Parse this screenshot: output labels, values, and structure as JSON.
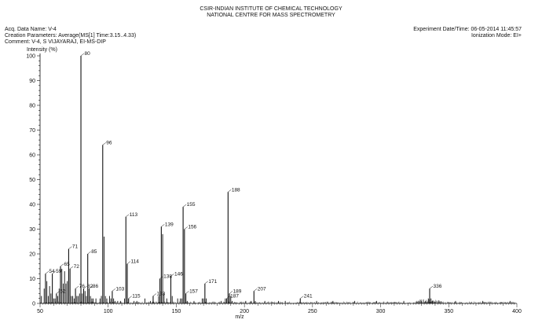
{
  "header": {
    "institute": "CSIR-INDIAN INSTITUTE OF CHEMICAL TECHNOLOGY",
    "centre": "NATIONAL CENTRE FOR MASS SPECTROMETRY",
    "acq_data_name": "Acq. Data Name: V-4",
    "creation_parameters": "Creation Parameters: Average(MS[1] Time:3.15..4.33)",
    "comment": "Comment: V-4,   S VIJAYARAJ,  EI-MS-DIP",
    "experiment_datetime": "Experiment Date/Time: 06-05-2014 11:45:57",
    "ionization_mode": "Ionization Mode: EI+"
  },
  "chart_data": {
    "type": "bar",
    "ylabel": "Intensity (%)",
    "xlabel": "m/z",
    "xlim": [
      50,
      400
    ],
    "ylim": [
      0,
      100
    ],
    "x_ticks": [
      50,
      100,
      150,
      200,
      250,
      300,
      350,
      400
    ],
    "y_ticks": [
      0,
      10,
      20,
      30,
      40,
      50,
      60,
      70,
      80,
      90,
      100
    ],
    "labeled_peaks": [
      {
        "mz": 54,
        "intensity": 12
      },
      {
        "mz": 59,
        "intensity": 12
      },
      {
        "mz": 62,
        "intensity": 4
      },
      {
        "mz": 65,
        "intensity": 15
      },
      {
        "mz": 71,
        "intensity": 22
      },
      {
        "mz": 72,
        "intensity": 14
      },
      {
        "mz": 76,
        "intensity": 6
      },
      {
        "mz": 80,
        "intensity": 100
      },
      {
        "mz": 82,
        "intensity": 6
      },
      {
        "mz": 85,
        "intensity": 20
      },
      {
        "mz": 86,
        "intensity": 6
      },
      {
        "mz": 96,
        "intensity": 64
      },
      {
        "mz": 103,
        "intensity": 5
      },
      {
        "mz": 113,
        "intensity": 35
      },
      {
        "mz": 114,
        "intensity": 16
      },
      {
        "mz": 115,
        "intensity": 2
      },
      {
        "mz": 133,
        "intensity": 3
      },
      {
        "mz": 138,
        "intensity": 10
      },
      {
        "mz": 139,
        "intensity": 31
      },
      {
        "mz": 146,
        "intensity": 11
      },
      {
        "mz": 155,
        "intensity": 39
      },
      {
        "mz": 156,
        "intensity": 30
      },
      {
        "mz": 157,
        "intensity": 4
      },
      {
        "mz": 171,
        "intensity": 8
      },
      {
        "mz": 187,
        "intensity": 2
      },
      {
        "mz": 188,
        "intensity": 45
      },
      {
        "mz": 189,
        "intensity": 4
      },
      {
        "mz": 207,
        "intensity": 5
      },
      {
        "mz": 241,
        "intensity": 2
      },
      {
        "mz": 336,
        "intensity": 6
      }
    ],
    "minor_peaks": [
      {
        "mz": 51,
        "intensity": 3
      },
      {
        "mz": 53,
        "intensity": 6
      },
      {
        "mz": 55,
        "intensity": 9
      },
      {
        "mz": 56,
        "intensity": 3
      },
      {
        "mz": 57,
        "intensity": 7
      },
      {
        "mz": 58,
        "intensity": 4
      },
      {
        "mz": 60,
        "intensity": 2
      },
      {
        "mz": 61,
        "intensity": 2
      },
      {
        "mz": 63,
        "intensity": 3
      },
      {
        "mz": 64,
        "intensity": 6
      },
      {
        "mz": 66,
        "intensity": 14
      },
      {
        "mz": 67,
        "intensity": 8
      },
      {
        "mz": 68,
        "intensity": 13
      },
      {
        "mz": 69,
        "intensity": 8
      },
      {
        "mz": 70,
        "intensity": 9
      },
      {
        "mz": 73,
        "intensity": 3
      },
      {
        "mz": 74,
        "intensity": 3
      },
      {
        "mz": 75,
        "intensity": 2
      },
      {
        "mz": 77,
        "intensity": 3
      },
      {
        "mz": 78,
        "intensity": 3
      },
      {
        "mz": 79,
        "intensity": 4
      },
      {
        "mz": 81,
        "intensity": 4
      },
      {
        "mz": 83,
        "intensity": 5
      },
      {
        "mz": 84,
        "intensity": 3
      },
      {
        "mz": 87,
        "intensity": 3
      },
      {
        "mz": 88,
        "intensity": 2
      },
      {
        "mz": 89,
        "intensity": 2
      },
      {
        "mz": 91,
        "intensity": 2
      },
      {
        "mz": 94,
        "intensity": 2
      },
      {
        "mz": 95,
        "intensity": 3
      },
      {
        "mz": 97,
        "intensity": 27
      },
      {
        "mz": 98,
        "intensity": 3
      },
      {
        "mz": 99,
        "intensity": 2
      },
      {
        "mz": 101,
        "intensity": 3
      },
      {
        "mz": 102,
        "intensity": 2
      },
      {
        "mz": 104,
        "intensity": 2
      },
      {
        "mz": 105,
        "intensity": 1
      },
      {
        "mz": 107,
        "intensity": 1
      },
      {
        "mz": 109,
        "intensity": 1
      },
      {
        "mz": 112,
        "intensity": 2
      },
      {
        "mz": 119,
        "intensity": 1
      },
      {
        "mz": 121,
        "intensity": 1
      },
      {
        "mz": 127,
        "intensity": 2
      },
      {
        "mz": 131,
        "intensity": 1
      },
      {
        "mz": 137,
        "intensity": 3
      },
      {
        "mz": 140,
        "intensity": 28
      },
      {
        "mz": 141,
        "intensity": 4
      },
      {
        "mz": 143,
        "intensity": 2
      },
      {
        "mz": 147,
        "intensity": 3
      },
      {
        "mz": 151,
        "intensity": 2
      },
      {
        "mz": 153,
        "intensity": 2
      },
      {
        "mz": 154,
        "intensity": 2
      },
      {
        "mz": 158,
        "intensity": 1
      },
      {
        "mz": 163,
        "intensity": 1
      },
      {
        "mz": 169,
        "intensity": 2
      },
      {
        "mz": 170,
        "intensity": 2
      },
      {
        "mz": 172,
        "intensity": 2
      },
      {
        "mz": 183,
        "intensity": 1
      },
      {
        "mz": 186,
        "intensity": 2
      },
      {
        "mz": 190,
        "intensity": 3
      },
      {
        "mz": 191,
        "intensity": 1
      },
      {
        "mz": 201,
        "intensity": 1
      },
      {
        "mz": 205,
        "intensity": 1
      },
      {
        "mz": 208,
        "intensity": 1
      },
      {
        "mz": 215,
        "intensity": 1
      },
      {
        "mz": 225,
        "intensity": 1
      },
      {
        "mz": 230,
        "intensity": 1
      },
      {
        "mz": 253,
        "intensity": 1
      },
      {
        "mz": 265,
        "intensity": 1
      },
      {
        "mz": 281,
        "intensity": 1
      },
      {
        "mz": 297,
        "intensity": 1
      },
      {
        "mz": 317,
        "intensity": 1
      },
      {
        "mz": 330,
        "intensity": 1
      },
      {
        "mz": 333,
        "intensity": 1
      },
      {
        "mz": 335,
        "intensity": 2
      },
      {
        "mz": 337,
        "intensity": 2
      },
      {
        "mz": 338,
        "intensity": 1
      },
      {
        "mz": 355,
        "intensity": 1
      },
      {
        "mz": 375,
        "intensity": 1
      },
      {
        "mz": 395,
        "intensity": 1
      }
    ],
    "line_color": "#111111"
  }
}
